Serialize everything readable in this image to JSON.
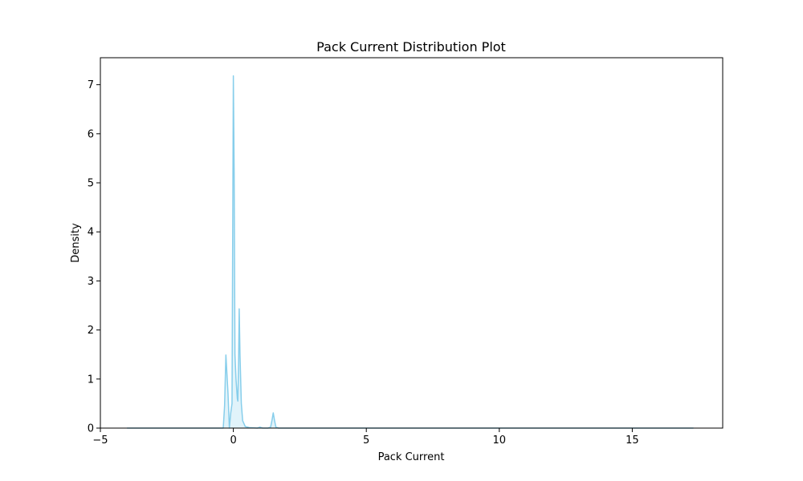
{
  "chart_data": {
    "type": "area",
    "title": "Pack Current Distribution Plot",
    "xlabel": "Pack Current",
    "ylabel": "Density",
    "xlim": [
      -5,
      18.4
    ],
    "ylim": [
      0,
      7.55
    ],
    "xticks": [
      -5,
      0,
      5,
      10,
      15
    ],
    "yticks": [
      0,
      1,
      2,
      3,
      4,
      5,
      6,
      7
    ],
    "grid": false,
    "legend": "none",
    "colors": {
      "line": "#87ceeb",
      "fill": "#87ceeb",
      "fill_opacity": 0.25
    },
    "series": [
      {
        "x": [
          -4.0,
          -1.0,
          -0.45,
          -0.38,
          -0.33,
          -0.28,
          -0.2,
          -0.15,
          -0.1,
          -0.05,
          0.0,
          0.03,
          0.06,
          0.1,
          0.15,
          0.17,
          0.2,
          0.22,
          0.25,
          0.3,
          0.35,
          0.45,
          0.6,
          0.9,
          1.0,
          1.1,
          1.3,
          1.4,
          1.45,
          1.5,
          1.55,
          1.6,
          1.7,
          2.0,
          5.0,
          10.0,
          15.0,
          17.3
        ],
        "y": [
          0.0,
          0.0,
          0.0,
          0.0,
          0.45,
          1.49,
          0.7,
          0.0,
          0.3,
          0.5,
          7.18,
          5.2,
          1.5,
          1.0,
          0.6,
          0.55,
          1.5,
          2.43,
          1.5,
          0.5,
          0.15,
          0.03,
          0.01,
          0.0,
          0.02,
          0.0,
          0.0,
          0.02,
          0.15,
          0.31,
          0.15,
          0.02,
          0.0,
          0.0,
          0.0,
          0.0,
          0.0,
          0.0
        ]
      }
    ]
  }
}
